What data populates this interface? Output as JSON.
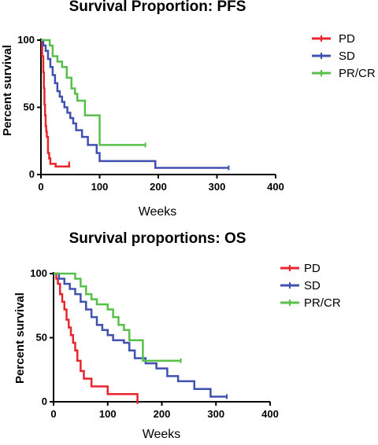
{
  "chart_data": [
    {
      "type": "line",
      "title": "Survival Proportion: PFS",
      "xlabel": "Weeks",
      "ylabel": "Percent survival",
      "xlim": [
        0,
        400
      ],
      "ylim": [
        0,
        100
      ],
      "xticks": [
        "0",
        "100",
        "200",
        "300",
        "400"
      ],
      "yticks": [
        "0",
        "50",
        "100"
      ],
      "legend_position": "top-right",
      "series": [
        {
          "name": "PD",
          "color": "#e8252b",
          "x": [
            0,
            2,
            4,
            5,
            6,
            7,
            8,
            9,
            10,
            12,
            14,
            16,
            20,
            25,
            35,
            48
          ],
          "y": [
            100,
            88,
            76,
            64,
            52,
            44,
            36,
            32,
            28,
            16,
            12,
            8,
            8,
            6,
            6,
            8
          ]
        },
        {
          "name": "SD",
          "color": "#4050b0",
          "x": [
            0,
            4,
            8,
            12,
            16,
            20,
            24,
            28,
            32,
            36,
            40,
            45,
            50,
            55,
            60,
            70,
            80,
            95,
            100,
            190,
            195,
            320
          ],
          "y": [
            100,
            96,
            92,
            86,
            80,
            74,
            68,
            62,
            58,
            54,
            50,
            46,
            42,
            38,
            33,
            28,
            22,
            16,
            10,
            10,
            5,
            5
          ]
        },
        {
          "name": "PR/CR",
          "color": "#58c04a",
          "x": [
            0,
            8,
            15,
            20,
            28,
            36,
            44,
            52,
            58,
            62,
            75,
            95,
            100,
            178
          ],
          "y": [
            100,
            100,
            96,
            88,
            84,
            80,
            72,
            64,
            60,
            55,
            44,
            44,
            22,
            22
          ]
        }
      ]
    },
    {
      "type": "line",
      "title": "Survival proportions: OS",
      "xlabel": "Weeks",
      "ylabel": "Percent survival",
      "xlim": [
        0,
        400
      ],
      "ylim": [
        0,
        100
      ],
      "xticks": [
        "0",
        "100",
        "200",
        "300",
        "400"
      ],
      "yticks": [
        "0",
        "50",
        "100"
      ],
      "legend_position": "top-right",
      "series": [
        {
          "name": "PD",
          "color": "#e8252b",
          "x": [
            0,
            5,
            8,
            12,
            16,
            20,
            24,
            28,
            32,
            36,
            40,
            44,
            50,
            56,
            60,
            70,
            95,
            100,
            155
          ],
          "y": [
            100,
            96,
            92,
            84,
            78,
            72,
            64,
            58,
            52,
            46,
            40,
            32,
            24,
            18,
            18,
            12,
            12,
            6,
            0
          ]
        },
        {
          "name": "SD",
          "color": "#4050b0",
          "x": [
            0,
            10,
            20,
            30,
            40,
            50,
            60,
            70,
            80,
            90,
            100,
            110,
            120,
            130,
            140,
            150,
            170,
            190,
            210,
            230,
            260,
            290,
            320
          ],
          "y": [
            100,
            96,
            92,
            88,
            84,
            78,
            72,
            66,
            60,
            56,
            52,
            48,
            48,
            46,
            40,
            34,
            30,
            26,
            20,
            16,
            10,
            4,
            4
          ]
        },
        {
          "name": "PR/CR",
          "color": "#58c04a",
          "x": [
            0,
            30,
            40,
            50,
            60,
            70,
            80,
            90,
            100,
            110,
            120,
            130,
            140,
            155,
            165,
            235
          ],
          "y": [
            100,
            100,
            96,
            90,
            84,
            80,
            76,
            76,
            72,
            66,
            60,
            56,
            48,
            48,
            32,
            32
          ]
        }
      ]
    }
  ]
}
